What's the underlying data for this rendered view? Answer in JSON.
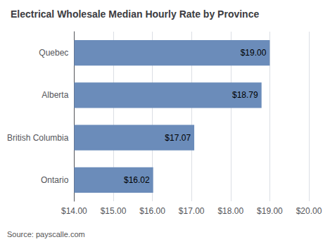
{
  "chart_data": {
    "type": "bar",
    "orientation": "horizontal",
    "title": "Electrical Wholesale Median Hourly Rate by Province",
    "annotation": "Source: payscalle.com",
    "categories": [
      "Ontario",
      "British Columbia",
      "Alberta",
      "Quebec"
    ],
    "values": [
      16.02,
      17.07,
      18.79,
      19.0
    ],
    "value_labels": [
      "$16.02",
      "$17.07",
      "$18.79",
      "$19.00"
    ],
    "data_labels": true,
    "color": "#6b8cba",
    "xlim": [
      14.0,
      20.0
    ],
    "xticks": [
      {
        "value": 14.0,
        "label": "$14.00"
      },
      {
        "value": 15.0,
        "label": "$15.00"
      },
      {
        "value": 16.0,
        "label": "$16.00"
      },
      {
        "value": 17.0,
        "label": "$17.00"
      },
      {
        "value": 18.0,
        "label": "$18.00"
      },
      {
        "value": 19.0,
        "label": "$19.00"
      },
      {
        "value": 20.0,
        "label": "$20.00"
      }
    ],
    "grid": true
  }
}
